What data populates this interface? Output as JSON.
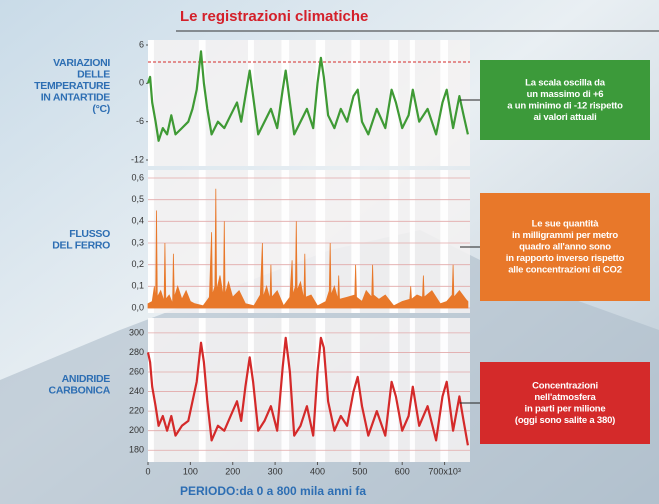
{
  "title": "Le registrazioni climatiche",
  "x_label": "PERIODO:da 0 a 800 mila anni fa",
  "chart_data": [
    {
      "type": "line",
      "label": [
        "VARIAZIONI",
        "DELLE",
        "TEMPERATURE",
        "IN ANTARTIDE",
        "(°C)"
      ],
      "annotation": [
        "La scala oscilla da",
        "un massimo di +6",
        "a un minimo di -12 rispetto",
        "ai valori attuali"
      ],
      "annotation_color": "#3c9a3a",
      "xlim": [
        0,
        760
      ],
      "ylim": [
        -12,
        6
      ],
      "yticks": [
        -12,
        -6,
        0,
        6
      ],
      "grid": false,
      "x": [
        0,
        5,
        10,
        18,
        25,
        35,
        45,
        55,
        65,
        80,
        95,
        105,
        115,
        125,
        132,
        140,
        150,
        165,
        180,
        195,
        210,
        220,
        230,
        240,
        248,
        260,
        275,
        290,
        305,
        318,
        325,
        335,
        345,
        360,
        375,
        390,
        400,
        408,
        415,
        425,
        440,
        455,
        470,
        485,
        495,
        505,
        520,
        540,
        560,
        575,
        585,
        600,
        615,
        625,
        640,
        660,
        680,
        695,
        705,
        720,
        735,
        745,
        755
      ],
      "series": [
        {
          "color": "#3f9a35",
          "values": [
            0,
            1,
            -3,
            -6,
            -9,
            -7,
            -8,
            -5,
            -8,
            -7,
            -6,
            -4,
            -1,
            5,
            0,
            -4,
            -8,
            -6,
            -7,
            -5,
            -3,
            -6,
            -2,
            2,
            -2,
            -8,
            -6,
            -4,
            -7,
            -1,
            2,
            -3,
            -8,
            -6,
            -4,
            -7,
            0,
            4,
            1,
            -5,
            -7,
            -4,
            -6,
            -2,
            -1,
            -6,
            -8,
            -4,
            -7,
            -1,
            -3,
            -7,
            -5,
            -1,
            -6,
            -4,
            -8,
            -3,
            -1,
            -7,
            -2,
            -5,
            -8
          ]
        }
      ]
    },
    {
      "type": "area",
      "label": [
        "FLUSSO",
        "DEL FERRO"
      ],
      "annotation": [
        "Le sue quantità",
        "in milligrammi per metro",
        "quadro all'anno sono",
        "in rapporto inverso rispetto",
        "alle concentrazioni di CO2"
      ],
      "annotation_color": "#e8782a",
      "xlim": [
        0,
        760
      ],
      "ylim": [
        0,
        0.6
      ],
      "yticks": [
        {
          "value": 0,
          "label": "0,0"
        },
        {
          "value": 0.1,
          "label": "0,1"
        },
        {
          "value": 0.2,
          "label": "0,2"
        },
        {
          "value": 0.3,
          "label": "0,3"
        },
        {
          "value": 0.4,
          "label": "0,4"
        },
        {
          "value": 0.5,
          "label": "0,5"
        },
        {
          "value": 0.6,
          "label": "0,6"
        }
      ],
      "grid": true,
      "x": [
        0,
        10,
        15,
        18,
        20,
        22,
        30,
        38,
        40,
        42,
        50,
        58,
        60,
        62,
        70,
        80,
        90,
        100,
        110,
        130,
        145,
        150,
        152,
        158,
        160,
        162,
        170,
        178,
        180,
        182,
        190,
        200,
        215,
        230,
        250,
        265,
        270,
        272,
        280,
        288,
        290,
        292,
        305,
        320,
        335,
        340,
        342,
        348,
        350,
        352,
        360,
        368,
        370,
        372,
        385,
        400,
        420,
        428,
        430,
        432,
        440,
        448,
        450,
        452,
        470,
        488,
        490,
        492,
        505,
        515,
        528,
        530,
        532,
        545,
        560,
        580,
        600,
        618,
        620,
        622,
        635,
        648,
        650,
        652,
        670,
        690,
        705,
        718,
        720,
        722,
        735,
        750,
        755
      ],
      "series": [
        {
          "color": "#e8782a",
          "values": [
            0.02,
            0.03,
            0.1,
            0.02,
            0.45,
            0.05,
            0.08,
            0.03,
            0.3,
            0.04,
            0.06,
            0.02,
            0.25,
            0.05,
            0.1,
            0.04,
            0.08,
            0.03,
            0.02,
            0.01,
            0.05,
            0.35,
            0.06,
            0.1,
            0.55,
            0.08,
            0.15,
            0.05,
            0.4,
            0.06,
            0.12,
            0.05,
            0.08,
            0.02,
            0.01,
            0.06,
            0.3,
            0.05,
            0.1,
            0.04,
            0.2,
            0.05,
            0.08,
            0.01,
            0.05,
            0.22,
            0.06,
            0.1,
            0.4,
            0.08,
            0.12,
            0.04,
            0.25,
            0.05,
            0.06,
            0.01,
            0.03,
            0.08,
            0.3,
            0.06,
            0.1,
            0.04,
            0.15,
            0.04,
            0.05,
            0.06,
            0.2,
            0.05,
            0.03,
            0.08,
            0.05,
            0.2,
            0.06,
            0.04,
            0.06,
            0.01,
            0.03,
            0.04,
            0.1,
            0.04,
            0.06,
            0.05,
            0.15,
            0.05,
            0.08,
            0.02,
            0.03,
            0.06,
            0.2,
            0.05,
            0.08,
            0.04,
            0.03
          ]
        }
      ]
    },
    {
      "type": "line",
      "label": [
        "ANIDRIDE",
        "CARBONICA"
      ],
      "annotation": [
        "Concentrazioni",
        "nell'atmosfera",
        "in parti per milione",
        "(oggi sono salite a 380)"
      ],
      "annotation_color": "#d42a2a",
      "xlim": [
        0,
        760
      ],
      "ylim": [
        170,
        305
      ],
      "yticks": [
        180,
        200,
        220,
        240,
        260,
        280,
        300
      ],
      "grid": true,
      "xticks": [
        0,
        100,
        200,
        300,
        400,
        500,
        600,
        {
          "value": 700,
          "label": "700x10³"
        }
      ],
      "x": [
        0,
        5,
        10,
        18,
        25,
        35,
        45,
        55,
        65,
        80,
        95,
        105,
        115,
        125,
        132,
        140,
        150,
        165,
        180,
        195,
        210,
        220,
        230,
        240,
        248,
        260,
        275,
        290,
        305,
        318,
        325,
        335,
        345,
        360,
        375,
        390,
        400,
        408,
        415,
        425,
        440,
        455,
        470,
        485,
        495,
        505,
        520,
        540,
        560,
        575,
        585,
        600,
        615,
        625,
        640,
        660,
        680,
        695,
        705,
        720,
        735,
        745,
        755
      ],
      "series": [
        {
          "color": "#d42a2a",
          "values": [
            280,
            270,
            245,
            225,
            205,
            215,
            200,
            215,
            195,
            205,
            210,
            230,
            250,
            290,
            270,
            230,
            190,
            205,
            200,
            215,
            230,
            210,
            245,
            275,
            250,
            200,
            210,
            225,
            200,
            265,
            295,
            260,
            195,
            205,
            225,
            195,
            260,
            295,
            285,
            230,
            200,
            215,
            205,
            240,
            255,
            225,
            195,
            220,
            195,
            250,
            235,
            200,
            215,
            245,
            205,
            225,
            190,
            235,
            250,
            200,
            235,
            210,
            185
          ]
        }
      ]
    }
  ]
}
